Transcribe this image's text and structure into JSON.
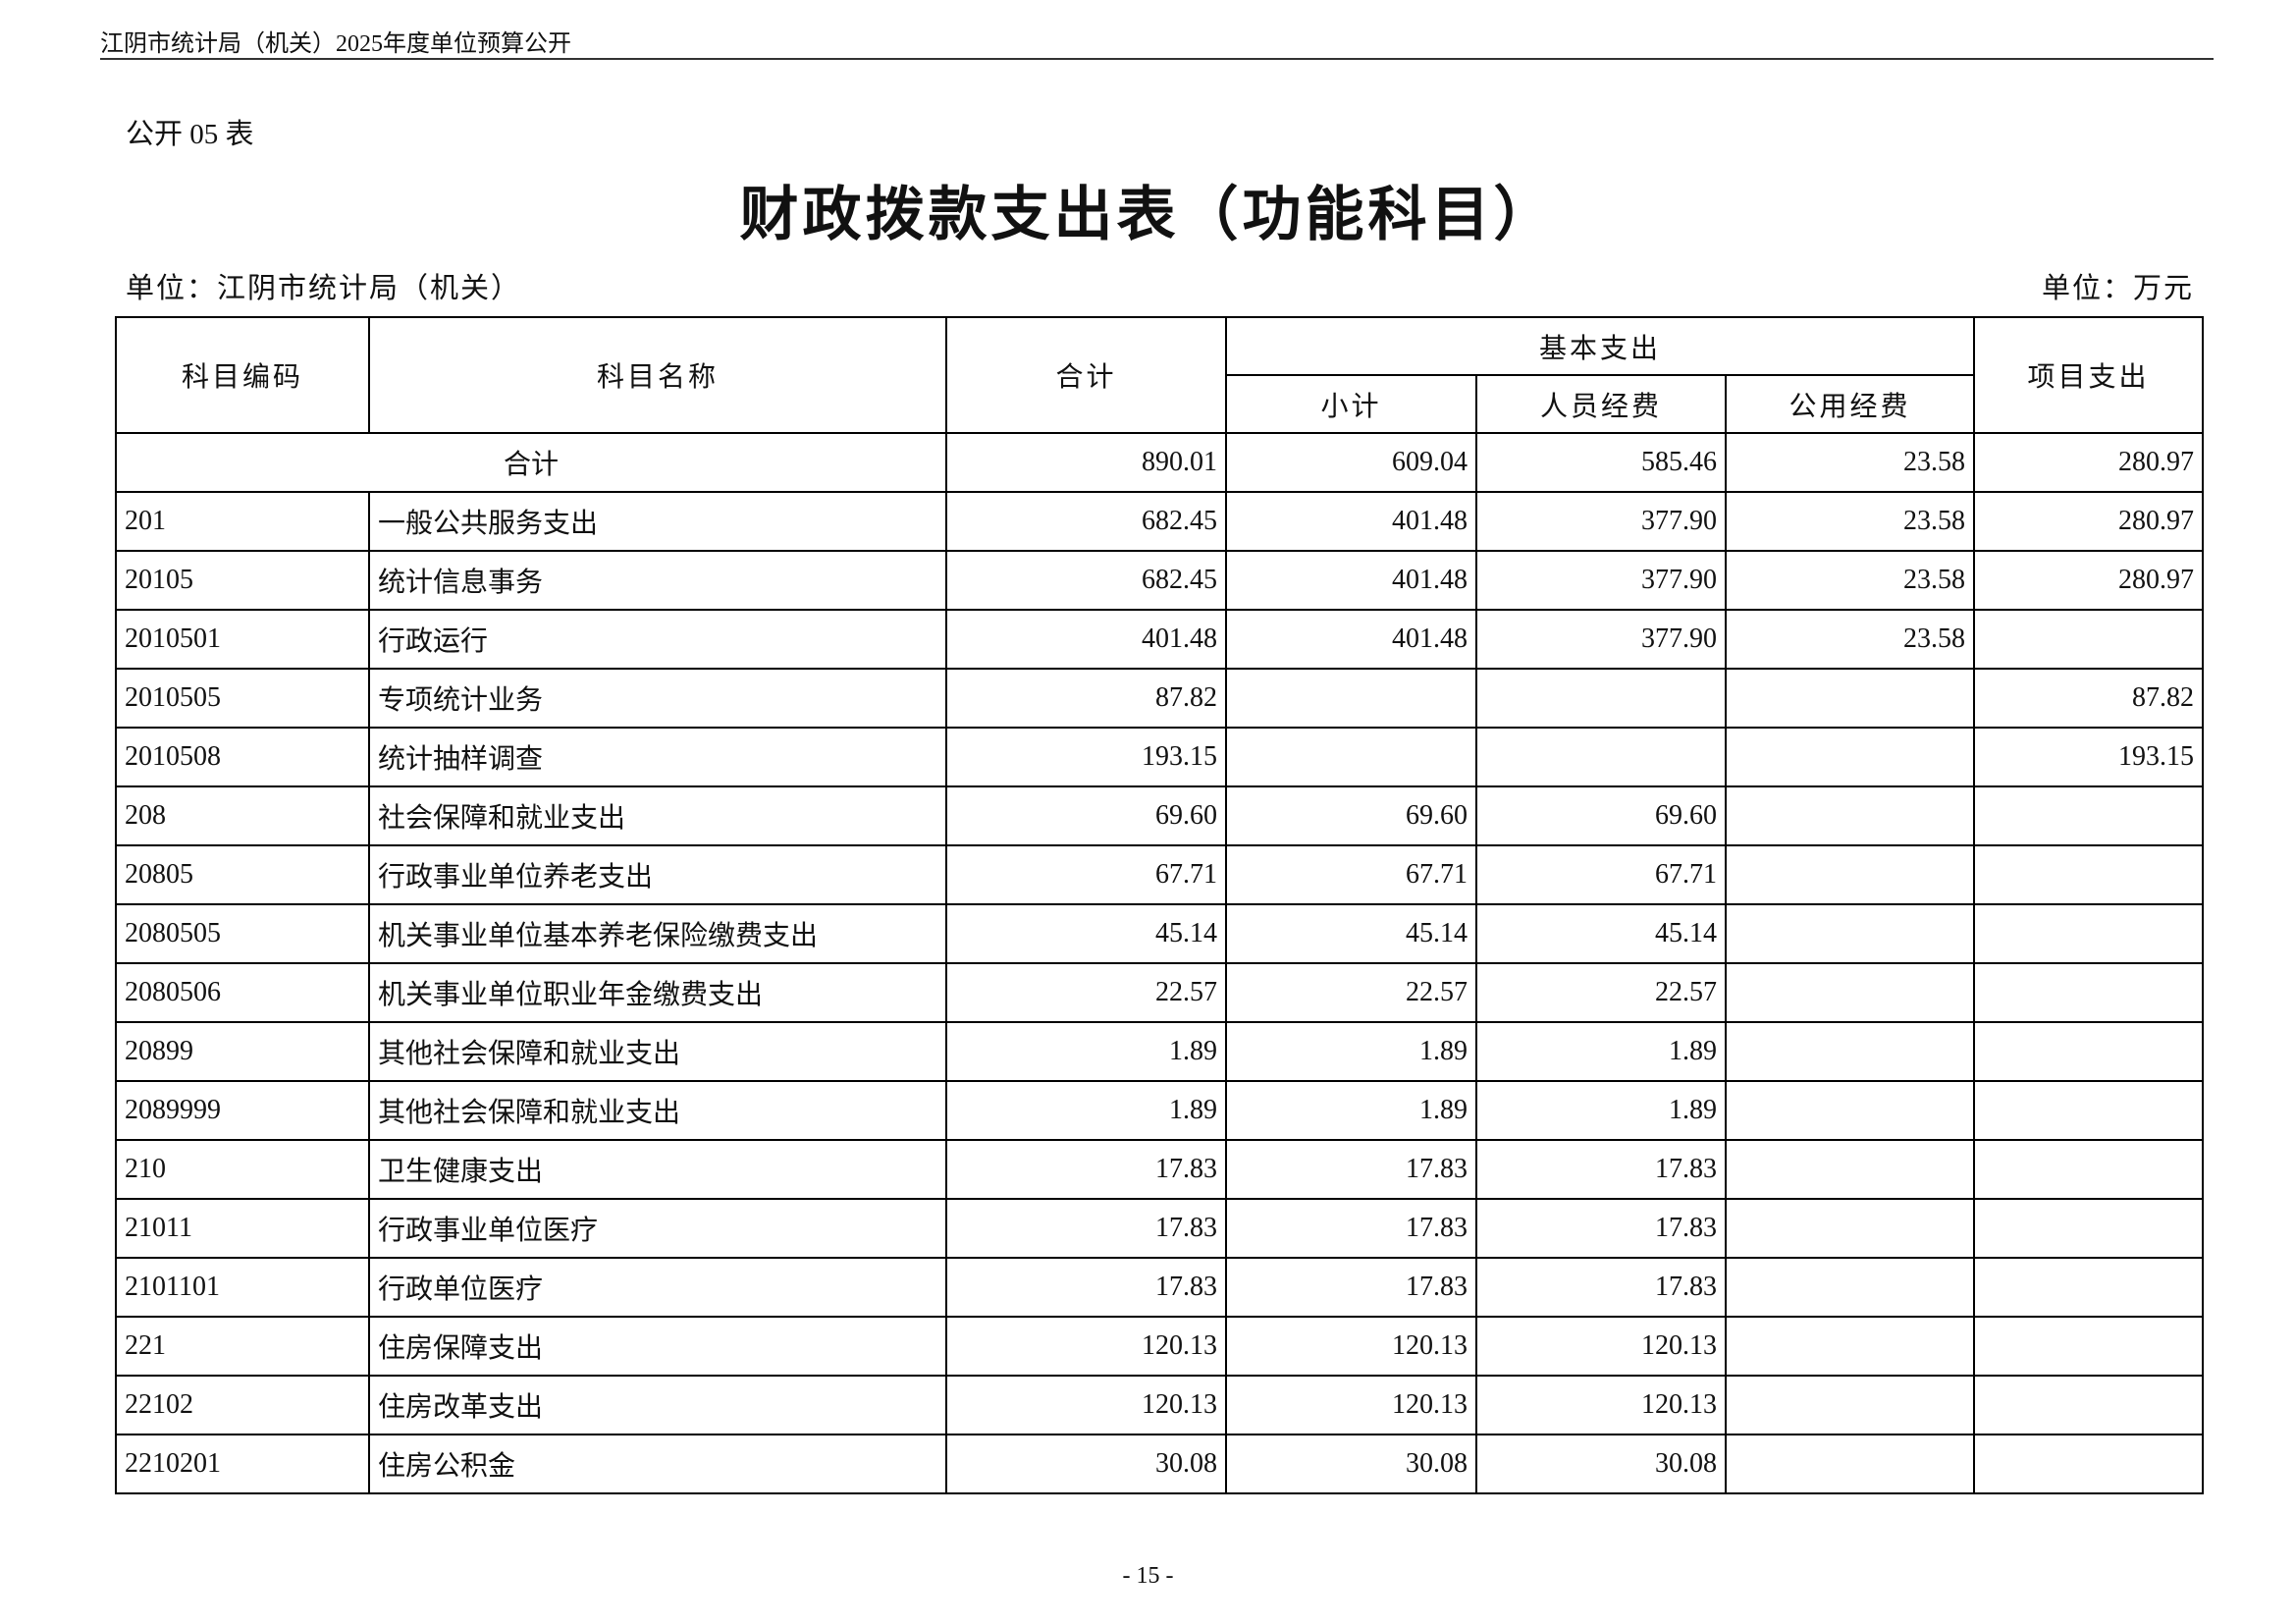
{
  "header": {
    "text": "江阴市统计局（机关）2025年度单位预算公开"
  },
  "table_number": "公开 05 表",
  "title": "财政拨款支出表（功能科目）",
  "unit_left": "单位：江阴市统计局（机关）",
  "unit_right": "单位：万元",
  "table": {
    "headers": {
      "code": "科目编码",
      "name": "科目名称",
      "total": "合计",
      "basic": "基本支出",
      "subtotal": "小计",
      "personnel": "人员经费",
      "public": "公用经费",
      "project": "项目支出"
    },
    "total_row": {
      "label": "合计",
      "values": [
        "890.01",
        "609.04",
        "585.46",
        "23.58",
        "280.97"
      ]
    },
    "rows": [
      [
        "201",
        "一般公共服务支出",
        "682.45",
        "401.48",
        "377.90",
        "23.58",
        "280.97"
      ],
      [
        "20105",
        "统计信息事务",
        "682.45",
        "401.48",
        "377.90",
        "23.58",
        "280.97"
      ],
      [
        "2010501",
        "行政运行",
        "401.48",
        "401.48",
        "377.90",
        "23.58",
        null
      ],
      [
        "2010505",
        "专项统计业务",
        "87.82",
        null,
        null,
        null,
        "87.82"
      ],
      [
        "2010508",
        "统计抽样调查",
        "193.15",
        null,
        null,
        null,
        "193.15"
      ],
      [
        "208",
        "社会保障和就业支出",
        "69.60",
        "69.60",
        "69.60",
        null,
        null
      ],
      [
        "20805",
        "行政事业单位养老支出",
        "67.71",
        "67.71",
        "67.71",
        null,
        null
      ],
      [
        "2080505",
        "机关事业单位基本养老保险缴费支出",
        "45.14",
        "45.14",
        "45.14",
        null,
        null
      ],
      [
        "2080506",
        "机关事业单位职业年金缴费支出",
        "22.57",
        "22.57",
        "22.57",
        null,
        null
      ],
      [
        "20899",
        "其他社会保障和就业支出",
        "1.89",
        "1.89",
        "1.89",
        null,
        null
      ],
      [
        "2089999",
        "其他社会保障和就业支出",
        "1.89",
        "1.89",
        "1.89",
        null,
        null
      ],
      [
        "210",
        "卫生健康支出",
        "17.83",
        "17.83",
        "17.83",
        null,
        null
      ],
      [
        "21011",
        "行政事业单位医疗",
        "17.83",
        "17.83",
        "17.83",
        null,
        null
      ],
      [
        "2101101",
        "行政单位医疗",
        "17.83",
        "17.83",
        "17.83",
        null,
        null
      ],
      [
        "221",
        "住房保障支出",
        "120.13",
        "120.13",
        "120.13",
        null,
        null
      ],
      [
        "22102",
        "住房改革支出",
        "120.13",
        "120.13",
        "120.13",
        null,
        null
      ],
      [
        "2210201",
        "住房公积金",
        "30.08",
        "30.08",
        "30.08",
        null,
        null
      ]
    ]
  },
  "page_number": "- 15 -"
}
